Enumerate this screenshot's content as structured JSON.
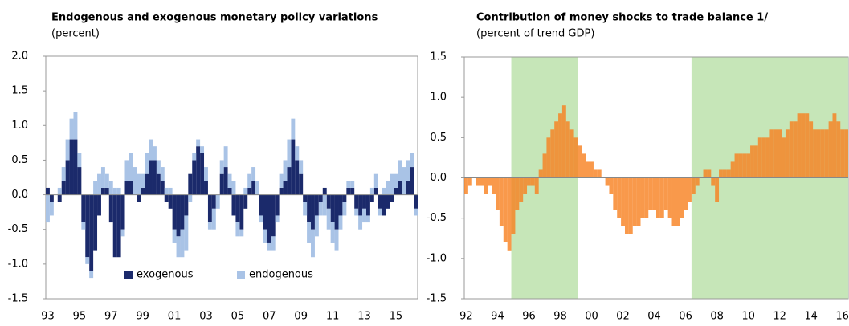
{
  "chart_data": [
    {
      "type": "stacked_bar",
      "title": "Endogenous and exogenous monetary policy variations",
      "subtitle": "(percent)",
      "categories": [
        "93",
        null,
        null,
        null,
        null,
        null,
        null,
        null,
        "95",
        null,
        null,
        null,
        null,
        null,
        null,
        null,
        "97",
        null,
        null,
        null,
        null,
        null,
        null,
        null,
        "99",
        null,
        null,
        null,
        null,
        null,
        null,
        null,
        "01",
        null,
        null,
        null,
        null,
        null,
        null,
        null,
        "03",
        null,
        null,
        null,
        null,
        null,
        null,
        null,
        "05",
        null,
        null,
        null,
        null,
        null,
        null,
        null,
        "07",
        null,
        null,
        null,
        null,
        null,
        null,
        null,
        "09",
        null,
        null,
        null,
        null,
        null,
        null,
        null,
        "11",
        null,
        null,
        null,
        null,
        null,
        null,
        null,
        "13",
        null,
        null,
        null,
        null,
        null,
        null,
        null,
        "15",
        null,
        null,
        null,
        null,
        null
      ],
      "series": [
        {
          "name": "exogenous",
          "color": "#1b2a6b",
          "values": [
            0.1,
            -0.1,
            0.0,
            -0.1,
            0.2,
            0.5,
            0.8,
            0.8,
            0.4,
            -0.4,
            -0.9,
            -1.1,
            -0.8,
            -0.3,
            0.1,
            0.1,
            -0.4,
            -0.9,
            -0.9,
            -0.5,
            0.2,
            0.2,
            0.0,
            -0.1,
            0.1,
            0.3,
            0.5,
            0.5,
            0.3,
            0.2,
            -0.1,
            -0.2,
            -0.5,
            -0.6,
            -0.5,
            -0.3,
            0.3,
            0.5,
            0.7,
            0.6,
            0.2,
            -0.4,
            -0.2,
            0.0,
            0.3,
            0.4,
            0.1,
            -0.3,
            -0.4,
            -0.5,
            -0.2,
            0.1,
            0.2,
            0.0,
            -0.3,
            -0.5,
            -0.7,
            -0.6,
            -0.3,
            0.1,
            0.2,
            0.4,
            0.8,
            0.5,
            0.3,
            -0.1,
            -0.4,
            -0.5,
            -0.3,
            -0.1,
            0.1,
            -0.2,
            -0.4,
            -0.5,
            -0.3,
            -0.1,
            0.1,
            0.1,
            -0.2,
            -0.3,
            -0.2,
            -0.3,
            -0.1,
            0.1,
            -0.2,
            -0.3,
            -0.2,
            -0.1,
            0.1,
            0.2,
            0.0,
            0.2,
            0.4,
            -0.2
          ]
        },
        {
          "name": "endogenous",
          "color": "#a9c3e6",
          "values": [
            -0.4,
            -0.2,
            0.0,
            0.1,
            0.2,
            0.3,
            0.3,
            0.4,
            0.2,
            -0.1,
            -0.1,
            -0.1,
            0.2,
            0.3,
            0.3,
            0.2,
            0.2,
            0.1,
            0.1,
            -0.1,
            0.3,
            0.4,
            0.4,
            0.3,
            0.2,
            0.3,
            0.3,
            0.2,
            0.2,
            0.2,
            0.1,
            0.1,
            -0.2,
            -0.3,
            -0.4,
            -0.5,
            -0.1,
            0.1,
            0.1,
            0.1,
            0.2,
            -0.1,
            -0.3,
            -0.2,
            0.2,
            0.3,
            0.2,
            0.2,
            -0.2,
            -0.1,
            0.1,
            0.2,
            0.2,
            0.2,
            -0.1,
            -0.2,
            -0.1,
            -0.2,
            -0.1,
            0.2,
            0.3,
            0.4,
            0.3,
            0.2,
            0.2,
            -0.2,
            -0.3,
            -0.4,
            -0.3,
            -0.2,
            -0.3,
            -0.3,
            -0.3,
            -0.3,
            -0.2,
            -0.2,
            0.1,
            0.1,
            -0.1,
            -0.2,
            -0.2,
            -0.1,
            0.1,
            0.2,
            -0.1,
            0.1,
            0.2,
            0.3,
            0.2,
            0.3,
            0.4,
            0.3,
            0.2,
            -0.1
          ]
        }
      ],
      "ylim": [
        -1.5,
        2.0
      ],
      "yticks": [
        {
          "value": -1.5,
          "label": "-1.5"
        },
        {
          "value": -1.0,
          "label": "-1.0"
        },
        {
          "value": -0.5,
          "label": "-0.5"
        },
        {
          "value": 0,
          "label": "0.0"
        },
        {
          "value": 0.5,
          "label": "0.5"
        },
        {
          "value": 1.0,
          "label": "1.0"
        },
        {
          "value": 1.5,
          "label": "1.5"
        },
        {
          "value": 2.0,
          "label": "2.0"
        }
      ],
      "legend": "bottom"
    },
    {
      "type": "bar",
      "title": "Contribution of money shocks to trade balance 1/",
      "subtitle": "(percent of trend GDP)",
      "categories": [
        "92",
        null,
        null,
        null,
        null,
        null,
        null,
        null,
        "94",
        null,
        null,
        null,
        null,
        null,
        null,
        null,
        "96",
        null,
        null,
        null,
        null,
        null,
        null,
        null,
        "98",
        null,
        null,
        null,
        null,
        null,
        null,
        null,
        "00",
        null,
        null,
        null,
        null,
        null,
        null,
        null,
        "02",
        null,
        null,
        null,
        null,
        null,
        null,
        null,
        "04",
        null,
        null,
        null,
        null,
        null,
        null,
        null,
        "06",
        null,
        null,
        null,
        null,
        null,
        null,
        null,
        "08",
        null,
        null,
        null,
        null,
        null,
        null,
        null,
        "10",
        null,
        null,
        null,
        null,
        null,
        null,
        null,
        "12",
        null,
        null,
        null,
        null,
        null,
        null,
        null,
        "14",
        null,
        null,
        null,
        null,
        null,
        null,
        null,
        "16",
        null
      ],
      "values": [
        -0.2,
        -0.1,
        0.0,
        -0.1,
        -0.1,
        -0.2,
        -0.1,
        -0.2,
        -0.4,
        -0.6,
        -0.8,
        -0.9,
        -0.7,
        -0.4,
        -0.3,
        -0.2,
        -0.1,
        -0.1,
        -0.2,
        0.1,
        0.3,
        0.5,
        0.6,
        0.7,
        0.8,
        0.9,
        0.7,
        0.6,
        0.5,
        0.4,
        0.3,
        0.2,
        0.2,
        0.1,
        0.1,
        0.0,
        -0.1,
        -0.2,
        -0.4,
        -0.5,
        -0.6,
        -0.7,
        -0.7,
        -0.6,
        -0.6,
        -0.5,
        -0.5,
        -0.4,
        -0.4,
        -0.5,
        -0.5,
        -0.4,
        -0.5,
        -0.6,
        -0.6,
        -0.5,
        -0.4,
        -0.3,
        -0.2,
        -0.1,
        0.0,
        0.1,
        0.1,
        -0.1,
        -0.3,
        0.1,
        0.1,
        0.1,
        0.2,
        0.3,
        0.3,
        0.3,
        0.3,
        0.4,
        0.4,
        0.5,
        0.5,
        0.5,
        0.6,
        0.6,
        0.6,
        0.5,
        0.6,
        0.7,
        0.7,
        0.8,
        0.8,
        0.8,
        0.7,
        0.6,
        0.6,
        0.6,
        0.6,
        0.7,
        0.8,
        0.7,
        0.6,
        0.6
      ],
      "color": "#f7801e",
      "shaded_periods": [
        [
          12,
          28
        ],
        [
          58,
          97
        ]
      ],
      "shade_color": "#c6e6b8",
      "ylim": [
        -1.5,
        1.5
      ],
      "yticks": [
        {
          "value": -1.5,
          "label": "-1.5"
        },
        {
          "value": -1.0,
          "label": "-1.0"
        },
        {
          "value": -0.5,
          "label": "-0.5"
        },
        {
          "value": 0,
          "label": "0.0"
        },
        {
          "value": 0.5,
          "label": "0.5"
        },
        {
          "value": 1.0,
          "label": "1.0"
        },
        {
          "value": 1.5,
          "label": "1.5"
        }
      ]
    }
  ]
}
